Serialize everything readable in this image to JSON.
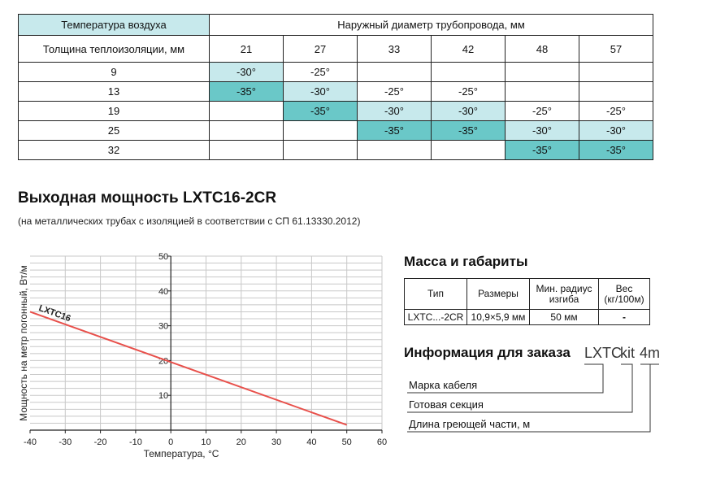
{
  "temp_table": {
    "air_temp_label": "Температура воздуха",
    "pipe_diameter_label": "Наружный диаметр трубопровода, мм",
    "insulation_label": "Толщина теплоизоляции, мм",
    "diameters": [
      "21",
      "27",
      "33",
      "42",
      "48",
      "57"
    ],
    "rows": [
      {
        "thickness": "9",
        "cells": [
          {
            "v": "-30°",
            "c": "light"
          },
          {
            "v": "-25°",
            "c": ""
          },
          {
            "v": "",
            "c": ""
          },
          {
            "v": "",
            "c": ""
          },
          {
            "v": "",
            "c": ""
          },
          {
            "v": "",
            "c": ""
          }
        ]
      },
      {
        "thickness": "13",
        "cells": [
          {
            "v": "-35°",
            "c": "dark"
          },
          {
            "v": "-30°",
            "c": "light"
          },
          {
            "v": "-25°",
            "c": ""
          },
          {
            "v": "-25°",
            "c": ""
          },
          {
            "v": "",
            "c": ""
          },
          {
            "v": "",
            "c": ""
          }
        ]
      },
      {
        "thickness": "19",
        "cells": [
          {
            "v": "",
            "c": ""
          },
          {
            "v": "-35°",
            "c": "dark"
          },
          {
            "v": "-30°",
            "c": "light"
          },
          {
            "v": "-30°",
            "c": "light"
          },
          {
            "v": "-25°",
            "c": ""
          },
          {
            "v": "-25°",
            "c": ""
          }
        ]
      },
      {
        "thickness": "25",
        "cells": [
          {
            "v": "",
            "c": ""
          },
          {
            "v": "",
            "c": ""
          },
          {
            "v": "-35°",
            "c": "dark"
          },
          {
            "v": "-35°",
            "c": "dark"
          },
          {
            "v": "-30°",
            "c": "light"
          },
          {
            "v": "-30°",
            "c": "light"
          }
        ]
      },
      {
        "thickness": "32",
        "cells": [
          {
            "v": "",
            "c": ""
          },
          {
            "v": "",
            "c": ""
          },
          {
            "v": "",
            "c": ""
          },
          {
            "v": "",
            "c": ""
          },
          {
            "v": "-35°",
            "c": "dark"
          },
          {
            "v": "-35°",
            "c": "dark"
          }
        ]
      }
    ]
  },
  "power": {
    "title": "Выходная мощность LXTC16-2CR",
    "subtitle": "(на металлических трубах с изоляцией в соответствии с СП 61.13330.2012)"
  },
  "chart_data": {
    "type": "line",
    "xlabel": "Температура, °С",
    "ylabel": "Мощность на метр погонный, Вт/м",
    "xlim": [
      -40,
      60
    ],
    "ylim": [
      0,
      50
    ],
    "x_ticks": [
      "-40",
      "-30",
      "-20",
      "-10",
      "0",
      "10",
      "20",
      "30",
      "40",
      "50",
      "60"
    ],
    "y_ticks": [
      "10",
      "20",
      "30",
      "40",
      "50"
    ],
    "grid": true,
    "series": [
      {
        "name": "LXTC16",
        "x": [
          -40,
          50
        ],
        "y": [
          34,
          1.5
        ]
      }
    ],
    "line_color": "#e8504b"
  },
  "mass": {
    "title": "Масса и габариты",
    "headers": [
      "Тип",
      "Размеры",
      "Мин. радиус изгиба",
      "Вес (кг/100м)"
    ],
    "row": [
      "LXTC...-2CR",
      "10,9×5,9 мм",
      "50 мм",
      "-"
    ]
  },
  "order": {
    "title": "Информация для заказа",
    "code_parts": [
      "LXTC",
      "kit",
      "4m"
    ],
    "labels": [
      "Марка кабеля",
      "Готовая секция",
      "Длина греющей части, м"
    ]
  },
  "colors": {
    "light_cell": "#c7e9ec",
    "dark_cell": "#6ac8c8"
  }
}
